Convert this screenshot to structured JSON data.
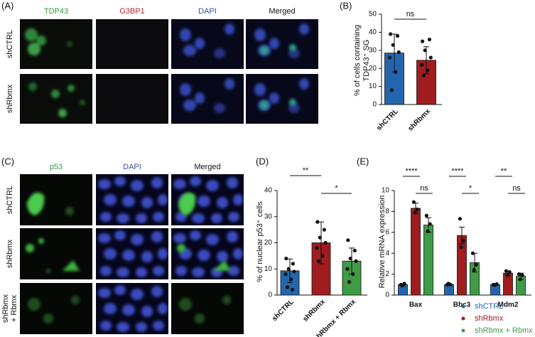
{
  "panel_labels": [
    "(A)",
    "(B)",
    "(C)",
    "(D)",
    "(E)"
  ],
  "figure_a": {
    "columns": [
      "TDP43",
      "G3BP1",
      "DAPI",
      "Merged"
    ],
    "rows": [
      "shCTRL",
      "shRbmx"
    ]
  },
  "figure_c": {
    "columns": [
      "p53",
      "DAPI",
      "Merged"
    ],
    "rows": [
      "shCTRL",
      "shRbmx",
      [
        "shRbmx",
        "+ Rbmx"
      ]
    ]
  },
  "chart_data": [
    {
      "type": "bar",
      "ylabel": [
        "% of cells containing",
        "TDP43⁺ SG"
      ],
      "categories": [
        "shCTRL",
        "shRbmx"
      ],
      "values": [
        28.5,
        24.5
      ],
      "errors": [
        10.5,
        7.5
      ],
      "points": [
        [
          39,
          38,
          33,
          29,
          26,
          18,
          8
        ],
        [
          35,
          36,
          30,
          26,
          22,
          19,
          16
        ]
      ],
      "colors": [
        "#2366ad",
        "#a01c1f"
      ],
      "ylim": [
        0,
        50
      ],
      "yticks": [
        0,
        10,
        20,
        30,
        40,
        50
      ],
      "significance": [
        "ns"
      ]
    },
    {
      "type": "bar",
      "ylabel": [
        "% of nuclear p53⁺ cells"
      ],
      "categories": [
        "shCTRL",
        "shRbmx",
        "shRbmx + Rbmx"
      ],
      "values": [
        9.3,
        20,
        13
      ],
      "errors": [
        4.5,
        8,
        5
      ],
      "points": [
        [
          14,
          12,
          10,
          9,
          8,
          6,
          3,
          2
        ],
        [
          28,
          25,
          22,
          20,
          18,
          15,
          13
        ],
        [
          21,
          17,
          14,
          13,
          10,
          8,
          5
        ]
      ],
      "colors": [
        "#2366ad",
        "#a01c1f",
        "#3f9b45"
      ],
      "ylim": [
        0,
        40
      ],
      "yticks": [
        0,
        10,
        20,
        30,
        40
      ],
      "significance": [
        "**",
        "*"
      ]
    },
    {
      "type": "grouped_bar",
      "ylabel": [
        "Relative mRNA expression"
      ],
      "categories": [
        "Bax",
        "Bbc3",
        "Mdm2"
      ],
      "series": [
        {
          "name": "shCTRL",
          "color": "#2366ad",
          "values": [
            1,
            1,
            1
          ],
          "errors": [
            0.1,
            0.1,
            0.1
          ],
          "points": [
            [
              1.0,
              1.1,
              0.9
            ],
            [
              1.0,
              1.0,
              1.1
            ],
            [
              1.0,
              1.05,
              0.95
            ]
          ]
        },
        {
          "name": "shRbmx",
          "color": "#a01c1f",
          "values": [
            8.3,
            5.7,
            2.1
          ],
          "errors": [
            0.5,
            0.8,
            0.2
          ],
          "points": [
            [
              8.9,
              8.2,
              7.9
            ],
            [
              7.3,
              5.2,
              4.6
            ],
            [
              2.3,
              2.2,
              1.9
            ]
          ]
        },
        {
          "name": "shRbmx + Rbmx",
          "color": "#3f9b45",
          "values": [
            6.7,
            3.1,
            1.8
          ],
          "errors": [
            0.7,
            0.9,
            0.3
          ],
          "points": [
            [
              7.6,
              6.8,
              6.1
            ],
            [
              4.0,
              2.9,
              2.4
            ],
            [
              2.0,
              1.9,
              1.5
            ]
          ]
        }
      ],
      "ylim": [
        0,
        10
      ],
      "yticks": [
        0,
        2,
        4,
        6,
        8,
        10
      ],
      "significance": [
        [
          "****",
          "ns"
        ],
        [
          "****",
          "*"
        ],
        [
          "**",
          "ns"
        ]
      ]
    }
  ]
}
